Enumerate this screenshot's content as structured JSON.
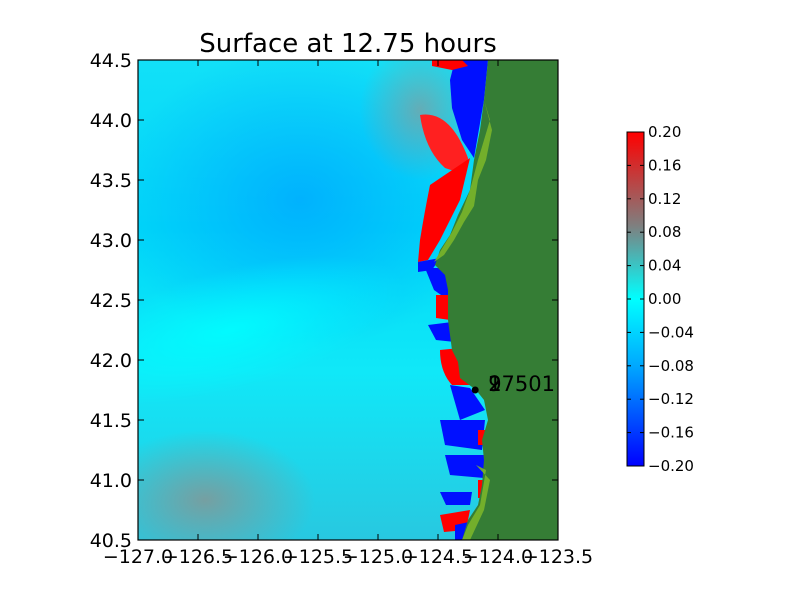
{
  "chart_data": {
    "type": "heatmap",
    "title": "Surface at 12.75 hours",
    "xlabel": "",
    "ylabel": "",
    "xlim": [
      -127.0,
      -123.5
    ],
    "ylim": [
      40.5,
      44.5
    ],
    "x_ticks": [
      -127.0,
      -126.5,
      -126.0,
      -125.5,
      -125.0,
      -124.5,
      -124.0,
      -123.5
    ],
    "x_tick_labels": [
      "−127.0",
      "−126.5",
      "−126.0",
      "−125.5",
      "−125.0",
      "−124.5",
      "−124.0",
      "−123.5"
    ],
    "y_ticks": [
      40.5,
      41.0,
      41.5,
      42.0,
      42.5,
      43.0,
      43.5,
      44.0,
      44.5
    ],
    "y_tick_labels": [
      "40.5",
      "41.0",
      "41.5",
      "42.0",
      "42.5",
      "43.0",
      "43.5",
      "44.0",
      "44.5"
    ],
    "colorbar": {
      "range": [
        -0.2,
        0.2
      ],
      "ticks": [
        0.2,
        0.16,
        0.12,
        0.08,
        0.04,
        0.0,
        -0.04,
        -0.08,
        -0.12,
        -0.16,
        -0.2
      ],
      "tick_labels": [
        "0.20",
        "0.16",
        "0.12",
        "0.08",
        "0.04",
        "0.00",
        "−0.04",
        "−0.08",
        "−0.12",
        "−0.16",
        "−0.20"
      ],
      "colors": [
        "#0000ff",
        "#00a8ff",
        "#00ffff",
        "#7f7f7f",
        "#ff0000"
      ]
    },
    "land_color": "#357d35",
    "gauge": {
      "x": -124.19,
      "y": 41.75,
      "labels": [
        "1",
        "2",
        "97501"
      ]
    }
  }
}
